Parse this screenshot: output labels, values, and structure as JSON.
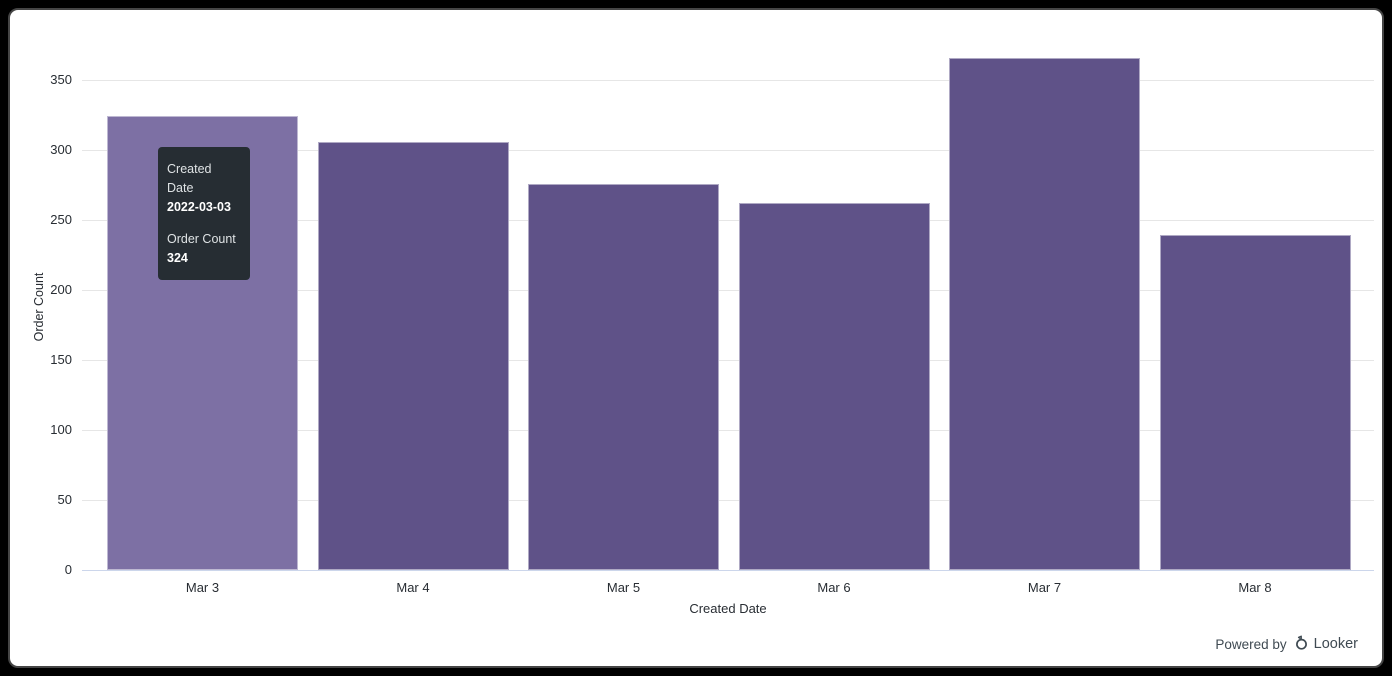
{
  "chart_data": {
    "type": "bar",
    "categories": [
      "Mar 3",
      "Mar 4",
      "Mar 5",
      "Mar 6",
      "Mar 7",
      "Mar 8"
    ],
    "values": [
      324,
      306,
      276,
      262,
      366,
      239
    ],
    "title": "",
    "xlabel": "Created Date",
    "ylabel": "Order Count",
    "ylim": [
      0,
      371
    ],
    "yticks": [
      0,
      50,
      100,
      150,
      200,
      250,
      300,
      350
    ],
    "grid": true,
    "legend": "none",
    "hovered_index": 0,
    "colors": {
      "bar": "#5f5288",
      "bar_hover": "#7d70a4",
      "gridline": "#e6e6e6",
      "axis_line": "#ccd6eb",
      "label": "#282d33"
    }
  },
  "tooltip": {
    "bg": "#262d33",
    "field1_label": "Created Date",
    "field1_value": "2022-03-03",
    "field2_label": "Order Count",
    "field2_value": "324"
  },
  "footer": {
    "powered_by": "Powered by",
    "brand": "Looker"
  }
}
